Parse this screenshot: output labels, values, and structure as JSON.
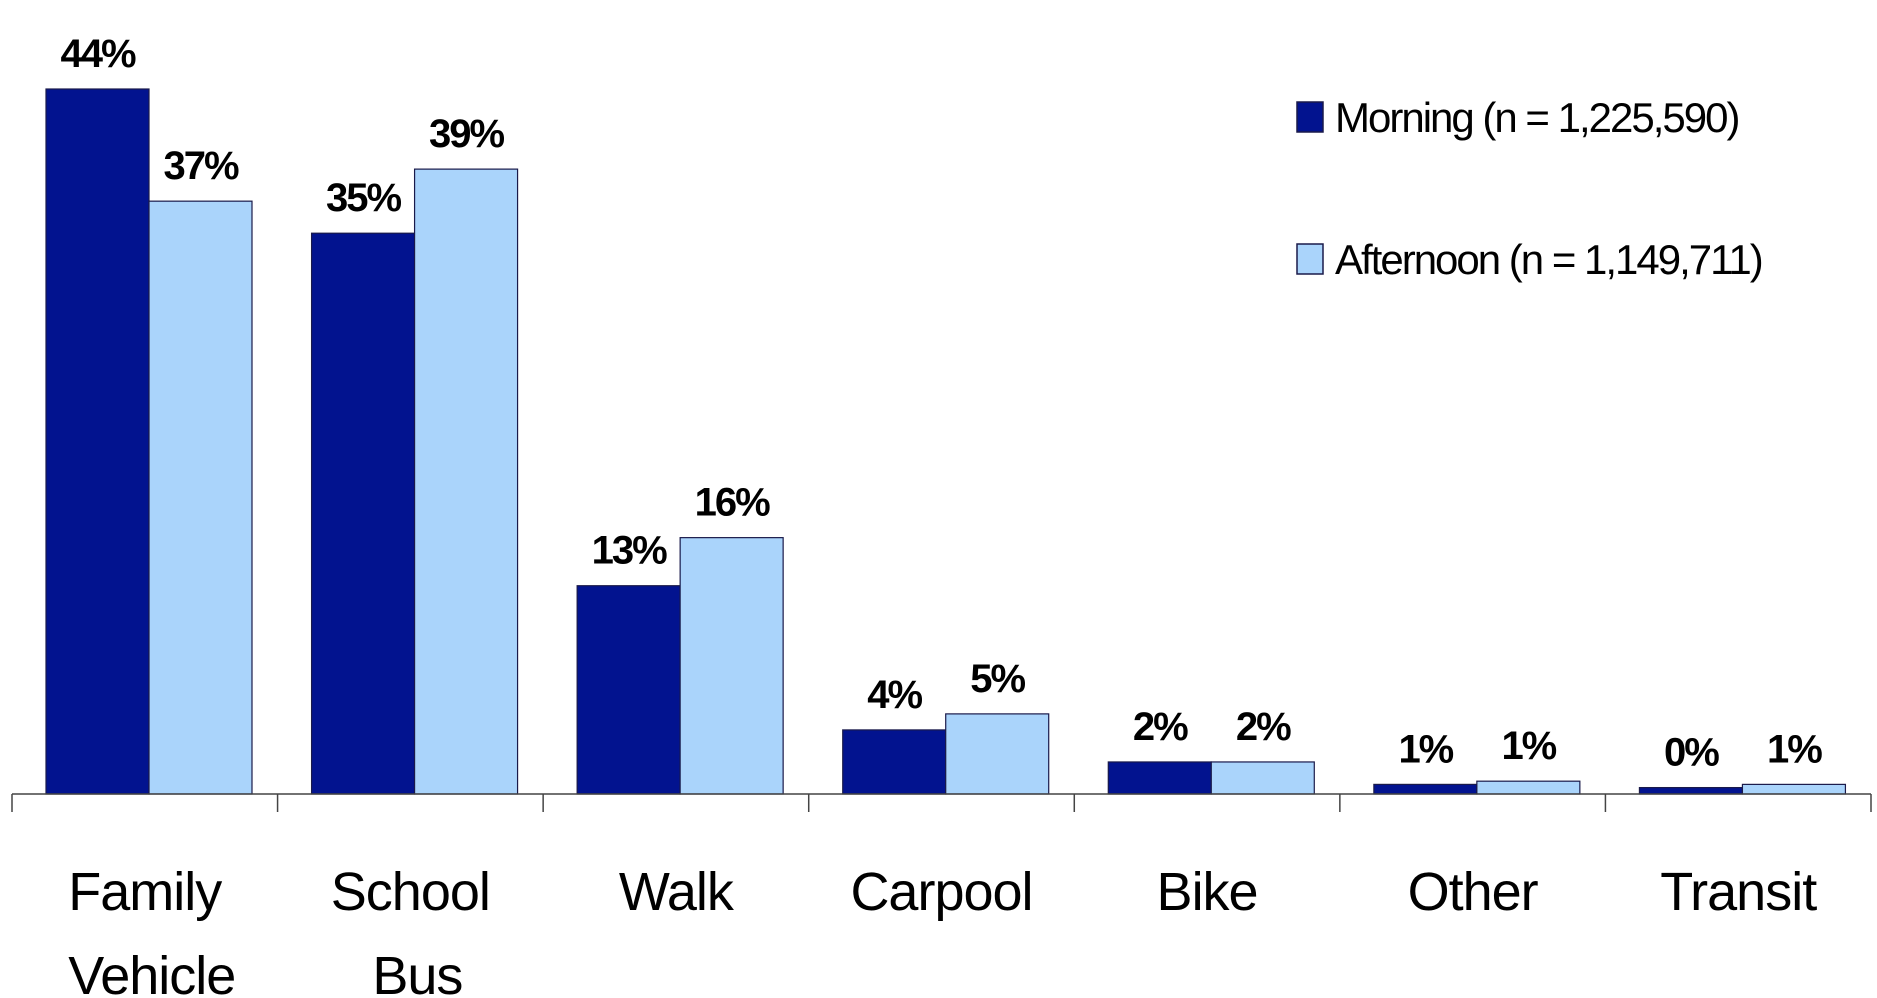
{
  "chart_data": {
    "type": "bar",
    "categories": [
      "Family Vehicle",
      "School Bus",
      "Walk",
      "Carpool",
      "Bike",
      "Other",
      "Transit"
    ],
    "series": [
      {
        "name": "Morning (n = 1,225,590)",
        "color": "#02138f",
        "values": [
          44,
          35,
          13,
          4,
          2,
          0.6,
          0.4
        ],
        "value_labels": [
          "44%",
          "35%",
          "13%",
          "4%",
          "2%",
          "1%",
          "0%"
        ]
      },
      {
        "name": "Afternoon (n = 1,149,711)",
        "color": "#aad4fb",
        "values": [
          37,
          39,
          16,
          5,
          2,
          0.8,
          0.6
        ],
        "value_labels": [
          "37%",
          "39%",
          "16%",
          "5%",
          "2%",
          "1%",
          "1%"
        ]
      }
    ],
    "legend": "top-right"
  }
}
